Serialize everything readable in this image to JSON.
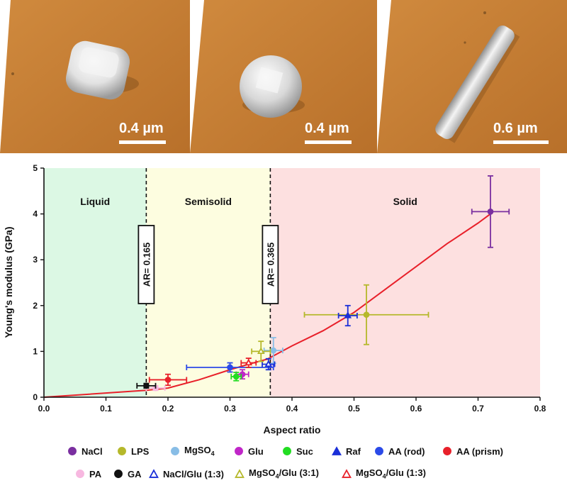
{
  "images": [
    {
      "scale_label": "0.4 µm",
      "shape": "cube"
    },
    {
      "scale_label": "0.4 µm",
      "shape": "dome"
    },
    {
      "scale_label": "0.6 µm",
      "shape": "rod"
    }
  ],
  "chart_data": {
    "type": "scatter",
    "xlabel": "Aspect ratio",
    "ylabel": "Young's modulus (GPa)",
    "xlim": [
      0,
      0.8
    ],
    "ylim": [
      0,
      5
    ],
    "xticks": [
      "0.0",
      "0.1",
      "0.2",
      "0.3",
      "0.4",
      "0.5",
      "0.6",
      "0.7",
      "0.8"
    ],
    "yticks": [
      "0",
      "1",
      "2",
      "3",
      "4",
      "5"
    ],
    "regions": [
      {
        "label": "Liquid",
        "x0": 0,
        "x1": 0.165,
        "color": "#dcf8e4"
      },
      {
        "label": "Semisolid",
        "x0": 0.165,
        "x1": 0.365,
        "color": "#fdfde0"
      },
      {
        "label": "Solid",
        "x0": 0.365,
        "x1": 0.8,
        "color": "#fde0e0"
      }
    ],
    "thresholds": [
      {
        "x": 0.165,
        "label": "AR= 0.165"
      },
      {
        "x": 0.365,
        "label": "AR= 0.365"
      }
    ],
    "fit_curve": {
      "color": "#e8202a",
      "x": [
        0,
        0.165,
        0.2,
        0.25,
        0.3,
        0.33,
        0.36,
        0.4,
        0.45,
        0.5,
        0.55,
        0.6,
        0.65,
        0.7,
        0.72
      ],
      "y": [
        0,
        0.15,
        0.2,
        0.38,
        0.6,
        0.72,
        0.83,
        1.12,
        1.45,
        1.85,
        2.35,
        2.85,
        3.35,
        3.8,
        4.0
      ]
    },
    "series": [
      {
        "name": "NaCl",
        "marker": "circle",
        "filled": true,
        "color": "#7a2fa0",
        "x": 0.72,
        "y": 4.05,
        "xerr": 0.03,
        "yerr": 0.78
      },
      {
        "name": "LPS",
        "marker": "circle",
        "filled": true,
        "color": "#b5b82a",
        "x": 0.52,
        "y": 1.8,
        "xerr": 0.1,
        "yerr": 0.65
      },
      {
        "name": "MgSO4",
        "marker": "circle",
        "filled": true,
        "color": "#88bde6",
        "x": 0.37,
        "y": 1.02,
        "xerr": 0.015,
        "yerr": 0.28
      },
      {
        "name": "Glu",
        "marker": "circle",
        "filled": true,
        "color": "#c026c8",
        "x": 0.32,
        "y": 0.5,
        "xerr": 0.01,
        "yerr": 0.1
      },
      {
        "name": "Suc",
        "marker": "circle",
        "filled": true,
        "color": "#22dd22",
        "x": 0.31,
        "y": 0.45,
        "xerr": 0.008,
        "yerr": 0.09
      },
      {
        "name": "Raf",
        "marker": "triangle",
        "filled": true,
        "color": "#1a2fd8",
        "x": 0.49,
        "y": 1.78,
        "xerr": 0.015,
        "yerr": 0.22
      },
      {
        "name": "AA (rod)",
        "marker": "circle",
        "filled": true,
        "color": "#2b4ae8",
        "x": 0.3,
        "y": 0.65,
        "xerr": 0.07,
        "yerr": 0.1
      },
      {
        "name": "AA (prism)",
        "marker": "circle",
        "filled": true,
        "color": "#e8202a",
        "x": 0.2,
        "y": 0.38,
        "xerr": 0.03,
        "yerr": 0.12
      },
      {
        "name": "PA",
        "marker": "circle",
        "filled": true,
        "color": "#f7b8e0",
        "x": 0.18,
        "y": 0.2,
        "xerr": 0.015,
        "yerr": 0.05
      },
      {
        "name": "GA",
        "marker": "circle",
        "filled": true,
        "color": "#111111",
        "x": 0.165,
        "y": 0.25,
        "xerr": 0.015,
        "yerr": 0.05
      },
      {
        "name": "NaCl/Glu (1:3)",
        "marker": "triangle",
        "filled": false,
        "color": "#1a2fd8",
        "x": 0.362,
        "y": 0.72,
        "xerr": 0.01,
        "yerr": 0.12
      },
      {
        "name": "MgSO4/Glu (3:1)",
        "marker": "triangle",
        "filled": false,
        "color": "#b5b82a",
        "x": 0.35,
        "y": 1.0,
        "xerr": 0.015,
        "yerr": 0.22
      },
      {
        "name": "MgSO4/Glu (1:3)",
        "marker": "triangle",
        "filled": false,
        "color": "#e8202a",
        "x": 0.33,
        "y": 0.75,
        "xerr": 0.012,
        "yerr": 0.1
      }
    ],
    "legend_rows": [
      [
        {
          "sym": "circle",
          "filled": true,
          "color": "#7a2fa0",
          "label": "NaCl"
        },
        {
          "sym": "circle",
          "filled": true,
          "color": "#b5b82a",
          "label": "LPS"
        },
        {
          "sym": "circle",
          "filled": true,
          "color": "#88bde6",
          "label": "MgSO",
          "sub": "4"
        },
        {
          "sym": "circle",
          "filled": true,
          "color": "#c026c8",
          "label": "Glu"
        },
        {
          "sym": "circle",
          "filled": true,
          "color": "#22dd22",
          "label": "Suc"
        },
        {
          "sym": "triangle",
          "filled": true,
          "color": "#1a2fd8",
          "label": "Raf"
        },
        {
          "sym": "circle",
          "filled": true,
          "color": "#2b4ae8",
          "label": "AA (rod)"
        },
        {
          "sym": "circle",
          "filled": true,
          "color": "#e8202a",
          "label": "AA (prism)"
        }
      ],
      [
        {
          "sym": "circle",
          "filled": true,
          "color": "#f7b8e0",
          "label": "PA"
        },
        {
          "sym": "circle",
          "filled": true,
          "color": "#111111",
          "label": "GA"
        },
        {
          "sym": "triangle",
          "filled": false,
          "color": "#1a2fd8",
          "label": "NaCl/Glu (1:3)"
        },
        {
          "sym": "triangle",
          "filled": false,
          "color": "#b5b82a",
          "label": "MgSO",
          "sub": "4",
          "label2": "/Glu (3:1)"
        },
        {
          "sym": "triangle",
          "filled": false,
          "color": "#e8202a",
          "label": "MgSO",
          "sub": "4",
          "label2": "/Glu (1:3)"
        }
      ]
    ]
  }
}
